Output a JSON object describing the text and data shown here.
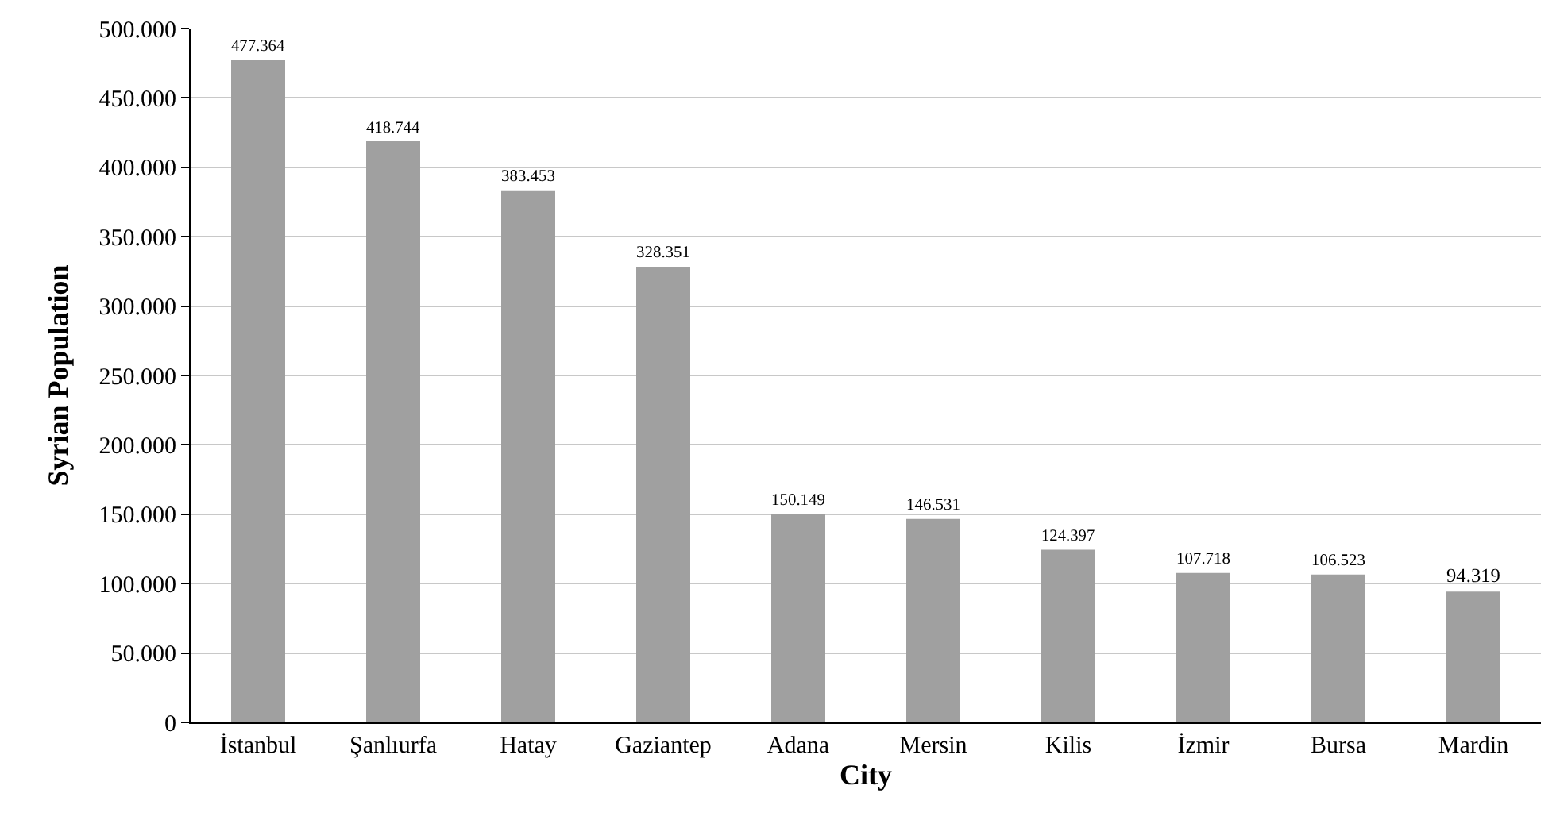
{
  "chart_data": {
    "type": "bar",
    "xlabel": "City",
    "ylabel": "Syrian Population",
    "categories": [
      "İstanbul",
      "Şanlıurfa",
      "Hatay",
      "Gaziantep",
      "Adana",
      "Mersin",
      "Kilis",
      "İzmir",
      "Bursa",
      "Mardin"
    ],
    "values": [
      477364,
      418744,
      383453,
      328351,
      150149,
      146531,
      124397,
      107718,
      106523,
      94319
    ],
    "value_labels": [
      "477.364",
      "418.744",
      "383.453",
      "328.351",
      "150.149",
      "146.531",
      "124.397",
      "107.718",
      "106.523",
      "94.319"
    ],
    "color": "#a0a0a0",
    "ylim": [
      0,
      500000
    ],
    "yticks": [
      {
        "value": 0,
        "label": "0"
      },
      {
        "value": 50000,
        "label": "50.000"
      },
      {
        "value": 100000,
        "label": "100.000"
      },
      {
        "value": 150000,
        "label": "150.000"
      },
      {
        "value": 200000,
        "label": "200.000"
      },
      {
        "value": 250000,
        "label": "250.000"
      },
      {
        "value": 300000,
        "label": "300.000"
      },
      {
        "value": 350000,
        "label": "350.000"
      },
      {
        "value": 400000,
        "label": "400.000"
      },
      {
        "value": 450000,
        "label": "450.000"
      },
      {
        "value": 500000,
        "label": "500.000"
      }
    ],
    "grid": "y"
  }
}
